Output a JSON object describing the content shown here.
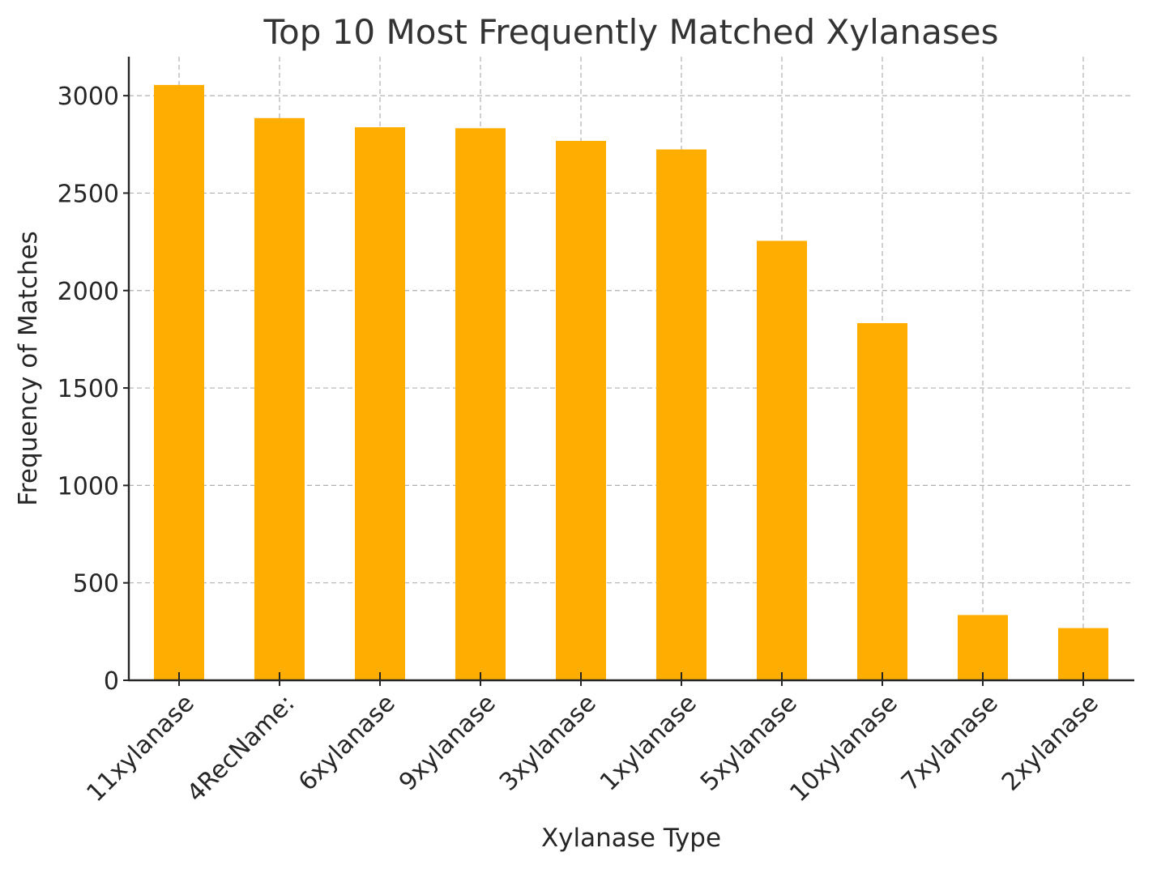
{
  "chart_data": {
    "type": "bar",
    "title": "Top 10 Most Frequently Matched Xylanases",
    "xlabel": "Xylanase Type",
    "ylabel": "Frequency of Matches",
    "categories": [
      "11xylanase",
      "4RecName:",
      "6xylanase",
      "9xylanase",
      "3xylanase",
      "1xylanase",
      "5xylanase",
      "10xylanase",
      "7xylanase",
      "2xylanase"
    ],
    "values": [
      3055,
      2885,
      2838,
      2833,
      2768,
      2724,
      2255,
      1833,
      335,
      268
    ],
    "ylim": [
      0,
      3200
    ],
    "yticks": [
      0,
      500,
      1000,
      1500,
      2000,
      2500,
      3000
    ],
    "grid": true,
    "bar_color": "#ffae00"
  }
}
